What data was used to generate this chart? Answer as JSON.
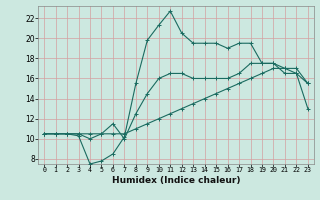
{
  "xlabel": "Humidex (Indice chaleur)",
  "bg_color": "#cce8e0",
  "grid_color": "#b8d8d0",
  "line_color": "#1a6b60",
  "xlim": [
    -0.5,
    23.5
  ],
  "ylim": [
    7.5,
    23.2
  ],
  "xticks": [
    0,
    1,
    2,
    3,
    4,
    5,
    6,
    7,
    8,
    9,
    10,
    11,
    12,
    13,
    14,
    15,
    16,
    17,
    18,
    19,
    20,
    21,
    22,
    23
  ],
  "yticks": [
    8,
    10,
    12,
    14,
    16,
    18,
    20,
    22
  ],
  "line1_x": [
    0,
    1,
    2,
    3,
    4,
    5,
    6,
    7,
    8,
    9,
    10,
    11,
    12,
    13,
    14,
    15,
    16,
    17,
    18,
    19,
    20,
    21,
    22,
    23
  ],
  "line1_y": [
    10.5,
    10.5,
    10.5,
    10.5,
    10.5,
    10.5,
    10.5,
    10.5,
    11.0,
    11.5,
    12.0,
    12.5,
    13.0,
    13.5,
    14.0,
    14.5,
    15.0,
    15.5,
    16.0,
    16.5,
    17.0,
    17.0,
    16.5,
    13.0
  ],
  "line2_x": [
    0,
    1,
    2,
    3,
    4,
    5,
    6,
    7,
    8,
    9,
    10,
    11,
    12,
    13,
    14,
    15,
    16,
    17,
    18,
    19,
    20,
    21,
    22,
    23
  ],
  "line2_y": [
    10.5,
    10.5,
    10.5,
    10.5,
    10.0,
    10.5,
    11.5,
    10.0,
    12.5,
    14.5,
    16.0,
    16.5,
    16.5,
    16.0,
    16.0,
    16.0,
    16.0,
    16.5,
    17.5,
    17.5,
    17.5,
    17.0,
    17.0,
    15.5
  ],
  "line3_x": [
    0,
    1,
    2,
    3,
    4,
    5,
    6,
    7,
    8,
    9,
    10,
    11,
    12,
    13,
    14,
    15,
    16,
    17,
    18,
    19,
    20,
    21,
    22,
    23
  ],
  "line3_y": [
    10.5,
    10.5,
    10.5,
    10.3,
    7.5,
    7.8,
    8.5,
    10.2,
    15.5,
    19.8,
    21.3,
    22.7,
    20.5,
    19.5,
    19.5,
    19.5,
    19.0,
    19.5,
    19.5,
    17.5,
    17.5,
    16.5,
    16.5,
    15.5
  ],
  "line1_markers": [
    0,
    1,
    2,
    3,
    7,
    23
  ],
  "line2_markers": [
    0,
    1,
    2,
    3,
    4,
    5,
    6,
    7,
    8,
    9,
    17,
    18,
    19,
    20,
    21,
    22,
    23
  ],
  "line3_markers": [
    0,
    3,
    4,
    5,
    6,
    7,
    8,
    9,
    10,
    11,
    12,
    13,
    14,
    15,
    16,
    17,
    18,
    19,
    20,
    21,
    22,
    23
  ]
}
